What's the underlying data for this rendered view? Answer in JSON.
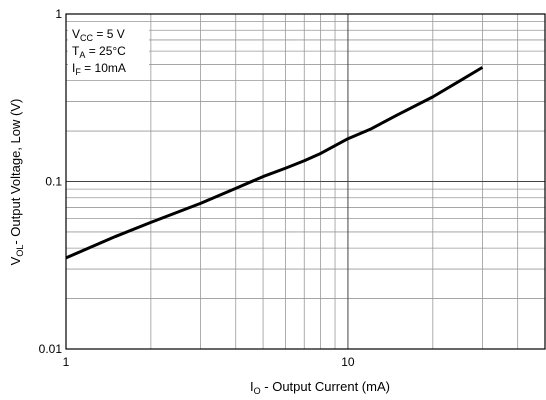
{
  "chart_data": {
    "type": "line",
    "title": "",
    "xlabel": {
      "main": "I",
      "sub": "O",
      "rest": " - Output Current (mA)"
    },
    "ylabel": {
      "main": "V",
      "sub": "OL",
      "rest": "- Output Voltage, Low (V)"
    },
    "x_scale": "log",
    "y_scale": "log",
    "xlim": [
      1,
      50
    ],
    "ylim": [
      0.01,
      1
    ],
    "x_tick_labels": [
      "1",
      "10"
    ],
    "y_tick_labels": [
      "0.01",
      "0.1",
      "1"
    ],
    "grid": true,
    "conditions": [
      {
        "main": "V",
        "sub": "CC",
        "rest": " = 5 V"
      },
      {
        "main": "T",
        "sub": "A",
        "rest": " = 25°C"
      },
      {
        "main": "I",
        "sub": "F",
        "rest": " = 10mA"
      }
    ],
    "series": [
      {
        "color": "#000000",
        "x": [
          1,
          1.5,
          2,
          3,
          4,
          5,
          6,
          7,
          8,
          10,
          12,
          15,
          20,
          25,
          30
        ],
        "y": [
          0.035,
          0.047,
          0.057,
          0.074,
          0.091,
          0.107,
          0.12,
          0.133,
          0.147,
          0.18,
          0.205,
          0.25,
          0.32,
          0.4,
          0.48
        ]
      }
    ]
  }
}
